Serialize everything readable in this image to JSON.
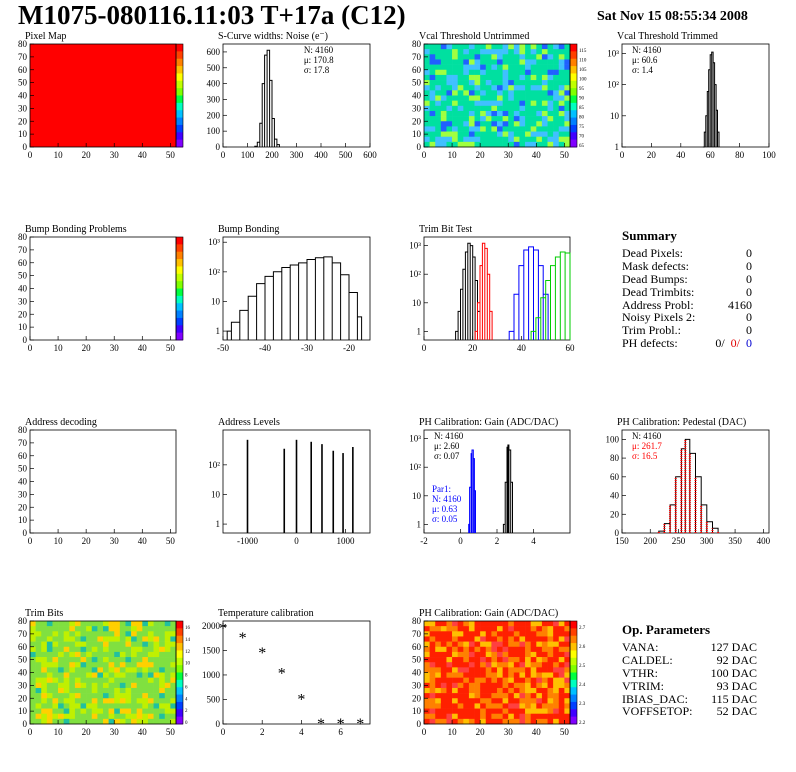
{
  "header": {
    "title": "M1075-080116.11:03 T+17a (C12)",
    "date": "Sat Nov 15 08:55:34 2008"
  },
  "colors": {
    "red": "#ff0000",
    "blue": "#0000ff",
    "green": "#00cc00",
    "black": "#000000"
  },
  "chart_data": [
    {
      "id": "pixel-map",
      "type": "heatmap",
      "title": "Pixel Map",
      "xlim": [
        0,
        52
      ],
      "ylim": [
        0,
        80
      ],
      "xticks": [
        "0",
        "10",
        "20",
        "30",
        "40",
        "50"
      ],
      "yticks": [
        "0",
        "10",
        "20",
        "30",
        "40",
        "50",
        "60",
        "70",
        "80"
      ],
      "fill": "uniform",
      "palette_range": [
        0,
        10
      ]
    },
    {
      "id": "noise",
      "type": "line",
      "title": "S-Curve widths: Noise (e⁻)",
      "xlim": [
        0,
        600
      ],
      "ylim": [
        0,
        650
      ],
      "xticks": [
        "0",
        "100",
        "200",
        "300",
        "400",
        "500",
        "600"
      ],
      "yticks": [
        "0",
        "100",
        "200",
        "300",
        "400",
        "500",
        "600"
      ],
      "stats": [
        "N: 4160",
        "μ: 170.8",
        "σ: 17.8"
      ],
      "x": [
        130,
        140,
        150,
        160,
        170,
        180,
        190,
        200,
        210,
        220,
        230
      ],
      "y": [
        5,
        30,
        150,
        400,
        580,
        610,
        420,
        180,
        50,
        15,
        3
      ]
    },
    {
      "id": "vcal-untrimmed",
      "type": "heatmap",
      "title": "Vcal Threshold Untrimmed",
      "xlim": [
        0,
        52
      ],
      "ylim": [
        0,
        80
      ],
      "xticks": [
        "0",
        "10",
        "20",
        "30",
        "40",
        "50"
      ],
      "yticks": [
        "0",
        "10",
        "20",
        "30",
        "40",
        "50",
        "60",
        "70",
        "80"
      ],
      "palette_labels": [
        "115",
        "110",
        "105",
        "100",
        "95",
        "90",
        "85",
        "80",
        "75",
        "70",
        "65"
      ]
    },
    {
      "id": "vcal-trimmed",
      "type": "line",
      "title": "Vcal Threshold Trimmed",
      "log_y": true,
      "xlim": [
        0,
        100
      ],
      "ylim": [
        1,
        2000
      ],
      "xticks": [
        "0",
        "20",
        "40",
        "60",
        "80",
        "100"
      ],
      "yticks": [
        "1",
        "10",
        "10²",
        "10³"
      ],
      "stats": [
        "N: 4160",
        "μ: 60.6",
        "σ:  1.4"
      ],
      "x": [
        55,
        56,
        57,
        58,
        59,
        60,
        61,
        62,
        63,
        64,
        65,
        66
      ],
      "y": [
        1,
        3,
        10,
        60,
        300,
        900,
        1100,
        500,
        100,
        15,
        3,
        1
      ]
    },
    {
      "id": "bump-bonding-problems",
      "type": "heatmap",
      "title": "Bump Bonding Problems",
      "xlim": [
        0,
        52
      ],
      "ylim": [
        0,
        80
      ],
      "xticks": [
        "0",
        "10",
        "20",
        "30",
        "40",
        "50"
      ],
      "yticks": [
        "0",
        "10",
        "20",
        "30",
        "40",
        "50",
        "60",
        "70",
        "80"
      ],
      "fill": "empty"
    },
    {
      "id": "bump-bonding",
      "type": "line",
      "title": "Bump Bonding",
      "log_y": true,
      "xlim": [
        -50,
        -15
      ],
      "ylim": [
        0.5,
        1500
      ],
      "xticks": [
        "-50",
        "-40",
        "-30",
        "-20"
      ],
      "yticks": [
        "1",
        "10",
        "10²",
        "10³"
      ],
      "x": [
        -49,
        -48,
        -46,
        -44,
        -42,
        -40,
        -38,
        -36,
        -34,
        -32,
        -30,
        -28,
        -26,
        -24,
        -22,
        -20,
        -18,
        -17
      ],
      "y": [
        1,
        2,
        5,
        15,
        40,
        70,
        100,
        140,
        170,
        200,
        260,
        300,
        320,
        200,
        80,
        20,
        3,
        1
      ]
    },
    {
      "id": "trim-bit-test",
      "type": "line",
      "title": "Trim Bit Test",
      "log_y": true,
      "xlim": [
        0,
        60
      ],
      "ylim": [
        0.5,
        2000
      ],
      "xticks": [
        "0",
        "20",
        "40",
        "60"
      ],
      "yticks": [
        "1",
        "10",
        "10²",
        "10³"
      ],
      "series": [
        {
          "color": "black",
          "x": [
            13,
            14,
            15,
            16,
            17,
            18,
            19,
            20,
            21,
            22,
            23
          ],
          "y": [
            1,
            5,
            30,
            150,
            600,
            1200,
            1000,
            400,
            60,
            5,
            1
          ]
        },
        {
          "color": "red",
          "x": [
            21,
            22,
            23,
            24,
            25,
            26,
            27,
            28
          ],
          "y": [
            1,
            10,
            200,
            1200,
            800,
            100,
            5,
            1
          ]
        },
        {
          "color": "blue",
          "x": [
            35,
            37,
            39,
            41,
            43,
            45,
            47,
            49,
            51
          ],
          "y": [
            1,
            20,
            200,
            700,
            900,
            700,
            200,
            20,
            1
          ]
        },
        {
          "color": "green",
          "x": [
            44,
            46,
            48,
            50,
            52,
            54,
            56,
            58,
            60
          ],
          "y": [
            1,
            3,
            15,
            60,
            200,
            400,
            600,
            550,
            500
          ]
        }
      ]
    },
    {
      "id": "address-decoding",
      "type": "heatmap",
      "title": "Address decoding",
      "xlim": [
        0,
        52
      ],
      "ylim": [
        0,
        80
      ],
      "xticks": [
        "0",
        "10",
        "20",
        "30",
        "40",
        "50"
      ],
      "yticks": [
        "0",
        "10",
        "20",
        "30",
        "40",
        "50",
        "60",
        "70",
        "80"
      ],
      "fill": "empty"
    },
    {
      "id": "address-levels",
      "type": "line",
      "title": "Address Levels",
      "log_y": true,
      "xlim": [
        -1500,
        1500
      ],
      "ylim": [
        0.5,
        1500
      ],
      "xticks": [
        "-1000",
        "0",
        "1000"
      ],
      "yticks": [
        "1",
        "10",
        "10²"
      ],
      "peaks": [
        -1000,
        -250,
        0,
        300,
        520,
        750,
        950,
        1150
      ],
      "peak_heights": [
        700,
        350,
        700,
        600,
        500,
        300,
        250,
        400
      ]
    },
    {
      "id": "ph-gain",
      "type": "line",
      "title": "PH Calibration: Gain (ADC/DAC)",
      "log_y": true,
      "xlim": [
        -2,
        6
      ],
      "ylim": [
        0.5,
        2000
      ],
      "xticks": [
        "-2",
        "0",
        "2",
        "4"
      ],
      "yticks": [
        "1",
        "10",
        "10²",
        "10³"
      ],
      "stats": [
        "N: 4160",
        "μ: 2.60",
        "σ: 0.07"
      ],
      "stats2": [
        "Par1:",
        "N: 4160",
        "μ: 0.63",
        "σ: 0.05"
      ],
      "series": [
        {
          "color": "black",
          "x": [
            2.35,
            2.45,
            2.55,
            2.6,
            2.65,
            2.75,
            2.85
          ],
          "y": [
            1,
            30,
            500,
            600,
            400,
            30,
            1
          ]
        },
        {
          "color": "blue",
          "x": [
            0.45,
            0.5,
            0.58,
            0.63,
            0.7,
            0.76,
            0.82
          ],
          "y": [
            1,
            20,
            300,
            400,
            200,
            15,
            1
          ]
        }
      ]
    },
    {
      "id": "ph-pedestal",
      "type": "line",
      "title": "PH Calibration: Pedestal (DAC)",
      "xlim": [
        150,
        410
      ],
      "ylim": [
        0,
        110
      ],
      "xticks": [
        "150",
        "200",
        "250",
        "300",
        "350",
        "400"
      ],
      "yticks": [
        "0",
        "20",
        "40",
        "60",
        "80",
        "100"
      ],
      "stats": [
        "N: 4160",
        "μ: 261.7",
        "σ: 16.5"
      ],
      "x": [
        215,
        225,
        235,
        245,
        255,
        262,
        270,
        280,
        290,
        300,
        310,
        320
      ],
      "y": [
        2,
        10,
        30,
        60,
        90,
        100,
        85,
        60,
        30,
        12,
        5,
        1
      ]
    },
    {
      "id": "trim-bits",
      "type": "heatmap",
      "title": "Trim Bits",
      "xlim": [
        0,
        52
      ],
      "ylim": [
        0,
        80
      ],
      "xticks": [
        "0",
        "10",
        "20",
        "30",
        "40",
        "50"
      ],
      "yticks": [
        "0",
        "10",
        "20",
        "30",
        "40",
        "50",
        "60",
        "70",
        "80"
      ],
      "palette_labels": [
        "16",
        "14",
        "12",
        "10",
        "8",
        "6",
        "4",
        "2",
        "0"
      ]
    },
    {
      "id": "temperature",
      "type": "scatter",
      "title": "Temperature calibration",
      "xlim": [
        0,
        7.5
      ],
      "ylim": [
        0,
        2100
      ],
      "xticks": [
        "0",
        "2",
        "4",
        "6"
      ],
      "yticks": [
        "0",
        "500",
        "1000",
        "1500",
        "2000"
      ],
      "x": [
        0,
        1,
        2,
        3,
        4,
        5,
        6,
        7
      ],
      "y": [
        1950,
        1750,
        1450,
        1030,
        500,
        0,
        0,
        0
      ]
    },
    {
      "id": "ph-gain-map",
      "type": "heatmap",
      "title": "PH Calibration: Gain (ADC/DAC)",
      "xlim": [
        0,
        52
      ],
      "ylim": [
        0,
        80
      ],
      "xticks": [
        "0",
        "10",
        "20",
        "30",
        "40",
        "50"
      ],
      "yticks": [
        "0",
        "10",
        "20",
        "30",
        "40",
        "50",
        "60",
        "70",
        "80"
      ],
      "palette_labels": [
        "2.7",
        "2.6",
        "2.5",
        "2.4",
        "2.3",
        "2.2"
      ]
    }
  ],
  "summary": {
    "title": "Summary",
    "rows": [
      {
        "label": "Dead Pixels:",
        "value": "0"
      },
      {
        "label": "Mask defects:",
        "value": "0"
      },
      {
        "label": "Dead Bumps:",
        "value": "0"
      },
      {
        "label": "Dead Trimbits:",
        "value": "0"
      },
      {
        "label": "Address Probl:",
        "value": "4160"
      },
      {
        "label": "Noisy Pixels 2:",
        "value": "0"
      },
      {
        "label": "Trim Probl.:",
        "value": "0"
      }
    ],
    "ph_label": "PH defects:",
    "ph_a": "0/",
    "ph_b": "0/",
    "ph_c": "0"
  },
  "op_params": {
    "title": "Op. Parameters",
    "rows": [
      {
        "label": "VANA:",
        "value": "127 DAC"
      },
      {
        "label": "CALDEL:",
        "value": "92 DAC"
      },
      {
        "label": "VTHR:",
        "value": "100 DAC"
      },
      {
        "label": "VTRIM:",
        "value": "93 DAC"
      },
      {
        "label": "IBIAS_DAC:",
        "value": "115 DAC"
      },
      {
        "label": "VOFFSETOP:",
        "value": "52 DAC"
      }
    ]
  }
}
